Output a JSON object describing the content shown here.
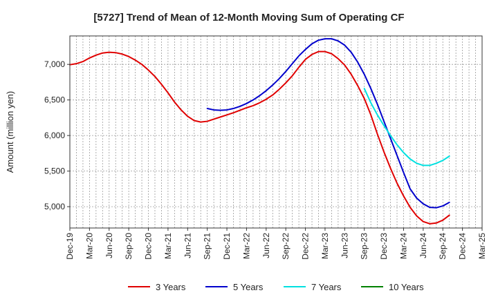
{
  "chart_data": {
    "type": "line",
    "title": "[5727]  Trend of Mean of 12-Month Moving Sum of Operating CF",
    "ylabel": "Amount (million yen)",
    "xlabel": "",
    "ylim": [
      4700,
      7400
    ],
    "yticks": [
      5000,
      5500,
      6000,
      6500,
      7000
    ],
    "ytick_labels": [
      "5,000",
      "5,500",
      "6,000",
      "6,500",
      "7,000"
    ],
    "x_start": "2019-12",
    "x_end": "2025-03",
    "xtick_labels": [
      "Dec-19",
      "Mar-20",
      "Jun-20",
      "Sep-20",
      "Dec-20",
      "Mar-21",
      "Jun-21",
      "Sep-21",
      "Dec-21",
      "Mar-22",
      "Jun-22",
      "Sep-22",
      "Dec-22",
      "Mar-23",
      "Jun-23",
      "Sep-23",
      "Dec-23",
      "Mar-24",
      "Jun-24",
      "Sep-24",
      "Dec-24",
      "Mar-25"
    ],
    "grid": true,
    "legend_position": "bottom",
    "series": [
      {
        "name": "3 Years",
        "color": "#e00000",
        "start_index": 0,
        "values": [
          6995,
          7010,
          7040,
          7090,
          7130,
          7160,
          7170,
          7165,
          7145,
          7110,
          7060,
          7000,
          6920,
          6830,
          6720,
          6600,
          6470,
          6360,
          6270,
          6210,
          6190,
          6200,
          6230,
          6260,
          6290,
          6320,
          6355,
          6390,
          6420,
          6460,
          6510,
          6570,
          6650,
          6740,
          6840,
          6960,
          7070,
          7140,
          7180,
          7180,
          7150,
          7080,
          6990,
          6860,
          6700,
          6520,
          6290,
          6020,
          5770,
          5540,
          5330,
          5150,
          4990,
          4870,
          4790,
          4760,
          4770,
          4810,
          4880
        ]
      },
      {
        "name": "5 Years",
        "color": "#0000cc",
        "start_index": 21,
        "values": [
          6380,
          6360,
          6355,
          6360,
          6380,
          6410,
          6450,
          6500,
          6560,
          6630,
          6710,
          6800,
          6900,
          7010,
          7120,
          7210,
          7290,
          7340,
          7360,
          7360,
          7330,
          7270,
          7170,
          7030,
          6860,
          6660,
          6440,
          6200,
          5960,
          5720,
          5480,
          5250,
          5120,
          5040,
          4990,
          4985,
          5010,
          5060
        ]
      },
      {
        "name": "7 Years",
        "color": "#00e0e0",
        "start_index": 45,
        "values": [
          6660,
          6460,
          6290,
          6140,
          6000,
          5870,
          5760,
          5670,
          5610,
          5580,
          5580,
          5610,
          5650,
          5710
        ]
      },
      {
        "name": "10 Years",
        "color": "#008000",
        "start_index": 0,
        "values": []
      }
    ]
  }
}
